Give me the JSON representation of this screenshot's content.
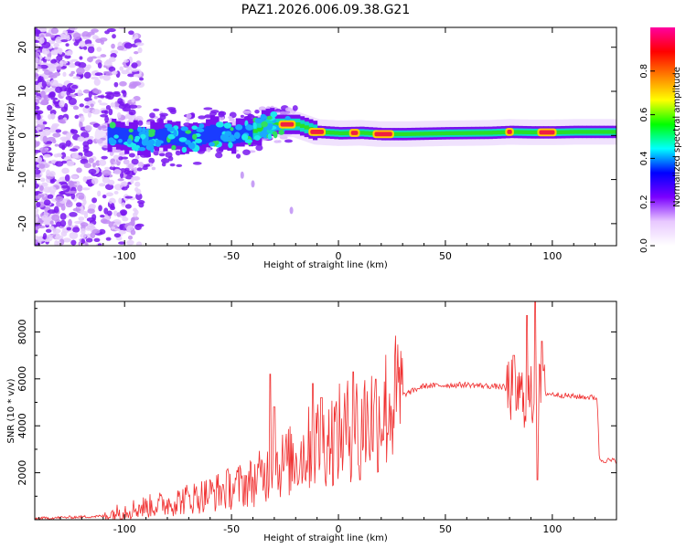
{
  "title": "PAZ1.2026.006.09.38.G21",
  "chart_data": [
    {
      "type": "heatmap",
      "name": "spectrogram",
      "xlabel": "Height of straight line (km)",
      "ylabel": "Frequency (Hz)",
      "xlim": [
        -142,
        130
      ],
      "ylim": [
        -25,
        24.5
      ],
      "xticks": [
        -100,
        -50,
        0,
        50,
        100
      ],
      "yticks": [
        -20,
        -10,
        0,
        10,
        20
      ],
      "colorbar": {
        "label": "Normalized spectral amplitude",
        "range": [
          0,
          1
        ],
        "ticks": [
          "0.0",
          "0.2",
          "0.4",
          "0.6",
          "0.8"
        ],
        "tick_values": [
          0.0,
          0.2,
          0.4,
          0.6,
          0.8
        ],
        "colormap": [
          "#ffffff",
          "#e8c8ff",
          "#7b00ff",
          "#0000ff",
          "#00ffff",
          "#00ff00",
          "#ffff00",
          "#ff8000",
          "#ff0000",
          "#ff00a0"
        ]
      },
      "band": {
        "center_hz": [
          [
            -105,
            0
          ],
          [
            -90,
            -1
          ],
          [
            -80,
            0
          ],
          [
            -70,
            -1
          ],
          [
            -60,
            0.5
          ],
          [
            -50,
            0
          ],
          [
            -40,
            1
          ],
          [
            -30,
            2.5
          ],
          [
            -20,
            2.5
          ],
          [
            -10,
            0.8
          ],
          [
            0,
            0.5
          ],
          [
            10,
            0.6
          ],
          [
            20,
            0.3
          ],
          [
            30,
            0.3
          ],
          [
            50,
            0.5
          ],
          [
            70,
            0.6
          ],
          [
            80,
            0.8
          ],
          [
            90,
            0.7
          ],
          [
            100,
            0.7
          ],
          [
            110,
            0.8
          ],
          [
            130,
            0.8
          ]
        ],
        "peak_segments_km": [
          [
            -28,
            -20
          ],
          [
            -14,
            -6
          ],
          [
            5,
            10
          ],
          [
            16,
            26
          ],
          [
            78,
            82
          ],
          [
            93,
            102
          ]
        ]
      }
    },
    {
      "type": "line",
      "name": "snr",
      "xlabel": "Height of straight line (km)",
      "ylabel": "SNR (10 * v/v)",
      "xlim": [
        -142,
        130
      ],
      "ylim": [
        0,
        9300
      ],
      "xticks": [
        -100,
        -50,
        0,
        50,
        100
      ],
      "yticks": [
        2000,
        4000,
        6000,
        8000
      ],
      "color": "#f03030",
      "trend": [
        [
          -142,
          50
        ],
        [
          -110,
          150
        ],
        [
          -100,
          400
        ],
        [
          -80,
          700
        ],
        [
          -60,
          1100
        ],
        [
          -40,
          1600
        ],
        [
          -30,
          2200
        ],
        [
          -20,
          2600
        ],
        [
          -10,
          3300
        ],
        [
          0,
          3600
        ],
        [
          10,
          4100
        ],
        [
          20,
          4600
        ],
        [
          30,
          5300
        ],
        [
          40,
          5700
        ],
        [
          60,
          5750
        ],
        [
          78,
          5650
        ],
        [
          84,
          5300
        ],
        [
          90,
          5200
        ],
        [
          95,
          5400
        ],
        [
          110,
          5250
        ],
        [
          121,
          5200
        ],
        [
          122,
          2550
        ],
        [
          130,
          2500
        ]
      ],
      "spikes": [
        [
          -32,
          6200
        ],
        [
          -30,
          4800
        ],
        [
          -12,
          5800
        ],
        [
          -8,
          5200
        ],
        [
          7,
          6300
        ],
        [
          10,
          1700
        ],
        [
          82,
          7000
        ],
        [
          88,
          8700
        ],
        [
          92,
          9300
        ],
        [
          93,
          1700
        ],
        [
          95,
          7600
        ]
      ]
    }
  ]
}
